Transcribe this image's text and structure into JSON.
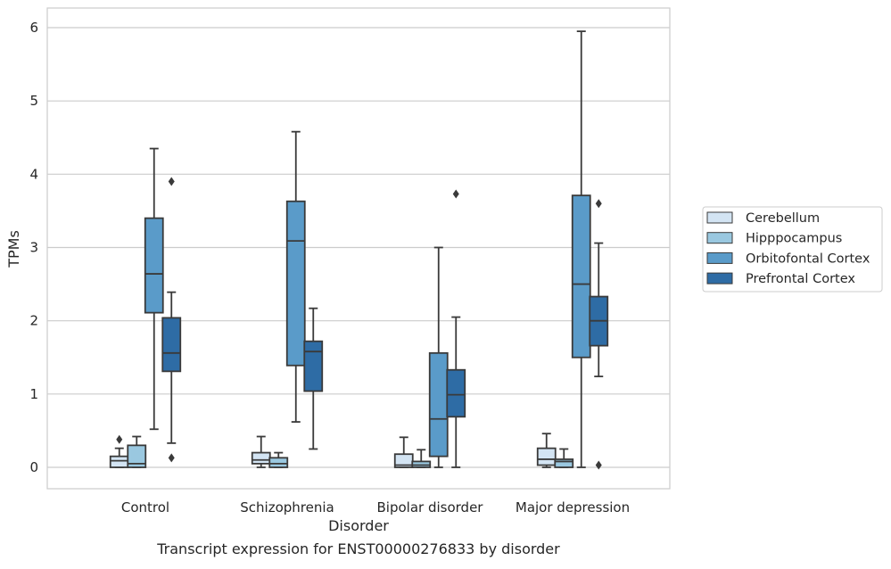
{
  "chart_data": {
    "type": "box",
    "xlabel": "Disorder",
    "ylabel": "TPMs",
    "caption": "Transcript expression for ENST00000276833 by disorder",
    "ylim": [
      -0.28,
      6.27
    ],
    "yticks": [
      "0",
      "1",
      "2",
      "3",
      "4",
      "5",
      "6"
    ],
    "grid": "horizontal",
    "legend_position": "right",
    "categories": [
      "Control",
      "Schizophrenia",
      "Bipolar disorder",
      "Major depression"
    ],
    "series": [
      {
        "name": "Cerebellum",
        "color": "#d3e4f3",
        "boxes": [
          {
            "whisker_low": 0.0,
            "q1": 0.0,
            "median": 0.09,
            "q3": 0.15,
            "whisker_high": 0.26,
            "outliers": [
              0.38
            ]
          },
          {
            "whisker_low": 0.0,
            "q1": 0.05,
            "median": 0.1,
            "q3": 0.2,
            "whisker_high": 0.42,
            "outliers": []
          },
          {
            "whisker_low": 0.0,
            "q1": 0.0,
            "median": 0.03,
            "q3": 0.18,
            "whisker_high": 0.41,
            "outliers": []
          },
          {
            "whisker_low": 0.0,
            "q1": 0.03,
            "median": 0.11,
            "q3": 0.26,
            "whisker_high": 0.46,
            "outliers": []
          }
        ]
      },
      {
        "name": "Hipppocampus",
        "color": "#9ac8e0",
        "boxes": [
          {
            "whisker_low": 0.0,
            "q1": 0.0,
            "median": 0.05,
            "q3": 0.3,
            "whisker_high": 0.42,
            "outliers": []
          },
          {
            "whisker_low": 0.0,
            "q1": 0.0,
            "median": 0.05,
            "q3": 0.13,
            "whisker_high": 0.2,
            "outliers": []
          },
          {
            "whisker_low": 0.0,
            "q1": 0.0,
            "median": 0.03,
            "q3": 0.08,
            "whisker_high": 0.24,
            "outliers": []
          },
          {
            "whisker_low": 0.0,
            "q1": 0.0,
            "median": 0.08,
            "q3": 0.11,
            "whisker_high": 0.25,
            "outliers": []
          }
        ]
      },
      {
        "name": "Orbitofontal Cortex",
        "color": "#5a9bc9",
        "boxes": [
          {
            "whisker_low": 0.52,
            "q1": 2.11,
            "median": 2.64,
            "q3": 3.4,
            "whisker_high": 4.35,
            "outliers": []
          },
          {
            "whisker_low": 0.62,
            "q1": 1.39,
            "median": 3.09,
            "q3": 3.63,
            "whisker_high": 4.58,
            "outliers": []
          },
          {
            "whisker_low": 0.0,
            "q1": 0.15,
            "median": 0.66,
            "q3": 1.56,
            "whisker_high": 3.0,
            "outliers": []
          },
          {
            "whisker_low": 0.0,
            "q1": 1.5,
            "median": 2.5,
            "q3": 3.71,
            "whisker_high": 5.95,
            "outliers": []
          }
        ]
      },
      {
        "name": "Prefrontal Cortex",
        "color": "#2e6ca5",
        "boxes": [
          {
            "whisker_low": 0.33,
            "q1": 1.31,
            "median": 1.56,
            "q3": 2.04,
            "whisker_high": 2.39,
            "outliers": [
              3.9,
              0.13
            ]
          },
          {
            "whisker_low": 0.25,
            "q1": 1.04,
            "median": 1.58,
            "q3": 1.72,
            "whisker_high": 2.17,
            "outliers": []
          },
          {
            "whisker_low": 0.0,
            "q1": 0.69,
            "median": 0.99,
            "q3": 1.33,
            "whisker_high": 2.05,
            "outliers": [
              3.73
            ]
          },
          {
            "whisker_low": 1.24,
            "q1": 1.66,
            "median": 2.0,
            "q3": 2.33,
            "whisker_high": 3.06,
            "outliers": [
              3.6,
              0.03
            ]
          }
        ]
      }
    ]
  }
}
